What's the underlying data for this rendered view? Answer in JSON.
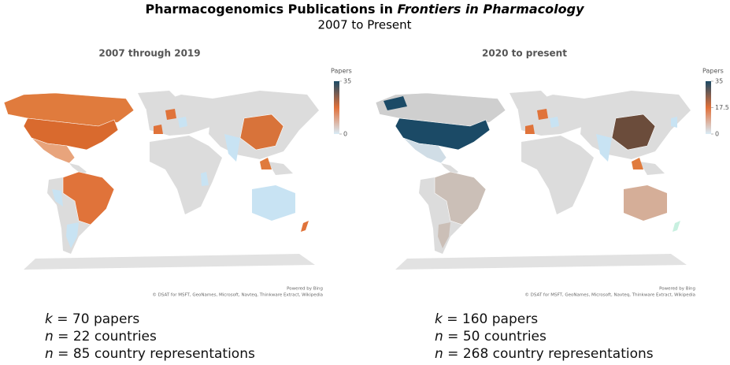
{
  "header": {
    "title": "Pharmacogenomics Publications in ",
    "title_italic": "Frontiers in Pharmacology",
    "subtitle": "2007 to Present"
  },
  "panels": [
    {
      "title": "2007 through 2019",
      "legend": {
        "title": "Papers",
        "range": [
          0,
          35
        ],
        "ticks": [
          35,
          0
        ]
      },
      "attribution": [
        "Powered by Bing",
        "© DSAT for MSFT, GeoNames, Microsoft, Navteq, Thinkware Extract, Wikipedia"
      ],
      "stats": [
        {
          "symbol": "k",
          "text": " = 70 papers"
        },
        {
          "symbol": "n",
          "text": " = 22 countries"
        },
        {
          "symbol": "n",
          "text": " = 85 country representations"
        }
      ]
    },
    {
      "title": "2020 to present",
      "legend": {
        "title": "Papers",
        "range": [
          0,
          35
        ],
        "ticks": [
          35,
          17.5,
          0
        ]
      },
      "attribution": [
        "Powered by Bing",
        "© DSAT for MSFT, GeoNames, Microsoft, Navteq, Thinkware Extract, Wikipedia"
      ],
      "stats": [
        {
          "symbol": "k",
          "text": " = 160 papers"
        },
        {
          "symbol": "n",
          "text": " = 50 countries"
        },
        {
          "symbol": "n",
          "text": " = 268 country representations"
        }
      ]
    }
  ]
}
